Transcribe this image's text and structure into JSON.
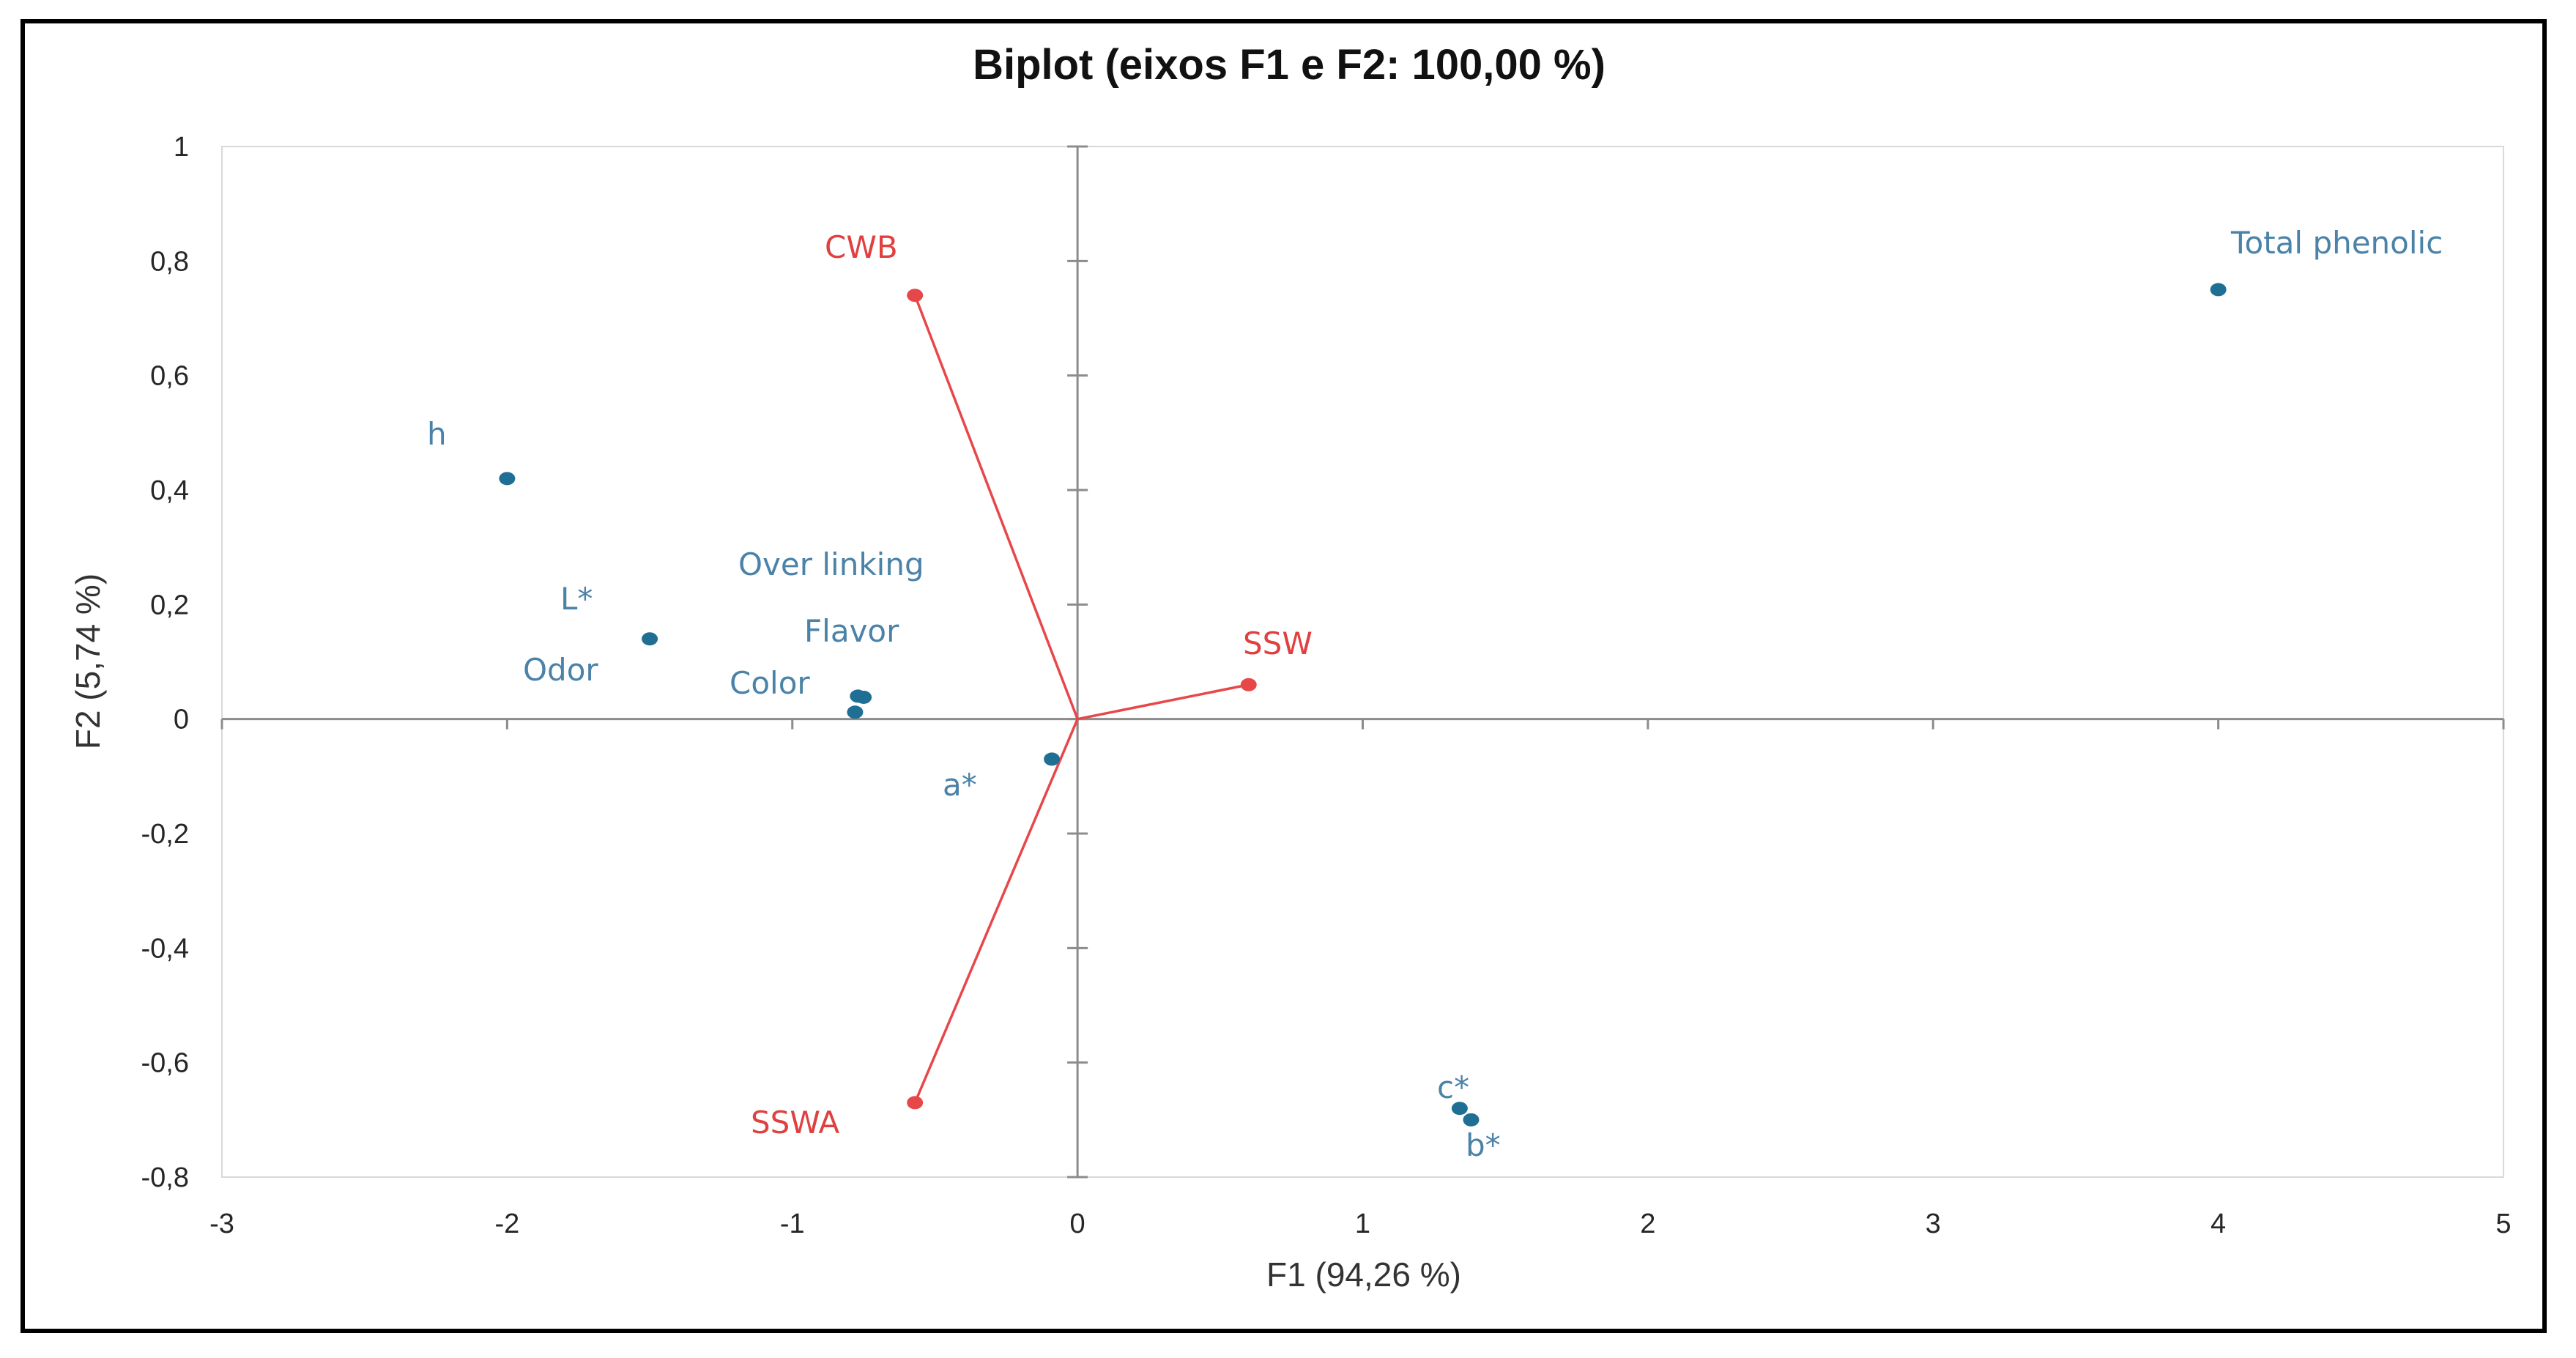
{
  "chart_data": {
    "type": "scatter",
    "title": "Biplot (eixos F1 e F2: 100,00 %)",
    "xlabel": "F1 (94,26 %)",
    "ylabel": "F2 (5,74 %)",
    "xlim": [
      -3,
      5
    ],
    "ylim": [
      -0.8,
      1
    ],
    "x_ticks": [
      {
        "value": -3,
        "label": "-3"
      },
      {
        "value": -2,
        "label": "-2"
      },
      {
        "value": -1,
        "label": "-1"
      },
      {
        "value": 0,
        "label": "0"
      },
      {
        "value": 1,
        "label": "1"
      },
      {
        "value": 2,
        "label": "2"
      },
      {
        "value": 3,
        "label": "3"
      },
      {
        "value": 4,
        "label": "4"
      },
      {
        "value": 5,
        "label": "5"
      }
    ],
    "y_ticks": [
      {
        "value": 1,
        "label": "1"
      },
      {
        "value": 0.8,
        "label": "0,8"
      },
      {
        "value": 0.6,
        "label": "0,6"
      },
      {
        "value": 0.4,
        "label": "0,4"
      },
      {
        "value": 0.2,
        "label": "0,2"
      },
      {
        "value": 0,
        "label": "0"
      },
      {
        "value": -0.2,
        "label": "-0,2"
      },
      {
        "value": -0.4,
        "label": "-0,4"
      },
      {
        "value": -0.6,
        "label": "-0,6"
      },
      {
        "value": -0.8,
        "label": "-0,8"
      }
    ],
    "grid": false,
    "series": [
      {
        "color": "#1f6e94",
        "label_color": "#4a82a8",
        "points": [
          {
            "label": "Total phenolic",
            "x": 4.0,
            "y": 0.75
          },
          {
            "label": "h",
            "x": -2.0,
            "y": 0.42
          },
          {
            "label": "L*",
            "x": -1.5,
            "y": 0.14
          },
          {
            "label": "Over linking",
            "x": -0.77,
            "y": 0.04
          },
          {
            "label": "Flavor",
            "x": -0.75,
            "y": 0.038
          },
          {
            "label": "Color",
            "x": -0.78,
            "y": 0.012
          },
          {
            "label": "a*",
            "x": -0.09,
            "y": -0.07
          },
          {
            "label": "c*",
            "x": 1.34,
            "y": -0.68
          },
          {
            "label": "b*",
            "x": 1.38,
            "y": -0.7
          }
        ]
      },
      {
        "color": "#e8474a",
        "label_color": "#e0403f",
        "vectors": true,
        "points": [
          {
            "label": "CWB",
            "x": -0.57,
            "y": 0.74
          },
          {
            "label": "SSW",
            "x": 0.6,
            "y": 0.06
          },
          {
            "label": "SSWA",
            "x": -0.57,
            "y": -0.67
          }
        ]
      }
    ],
    "extra_labels": [
      {
        "label": "Odor",
        "x": -1.8,
        "y": 0.085,
        "color": "#4a82a8"
      }
    ]
  }
}
